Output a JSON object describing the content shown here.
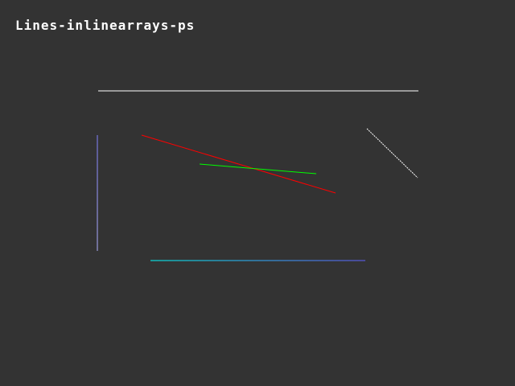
{
  "title": "Lines-inlinearrays-ps",
  "background": "#333333",
  "lines": [
    {
      "name": "top-white-line",
      "from": "#ffffff",
      "to": "#ffffff"
    },
    {
      "name": "diagonal-white-line",
      "from": "#ffffff",
      "to": "#ffffff"
    },
    {
      "name": "left-vertical-line",
      "from": "#8080ff",
      "to": "#b0b0ff"
    },
    {
      "name": "red-line",
      "from": "#ff0000",
      "to": "#ff0000"
    },
    {
      "name": "green-line",
      "from": "#00ff00",
      "to": "#00ff00"
    },
    {
      "name": "bottom-gradient-line",
      "from": "#00ffff",
      "to": "#6060ff"
    }
  ]
}
